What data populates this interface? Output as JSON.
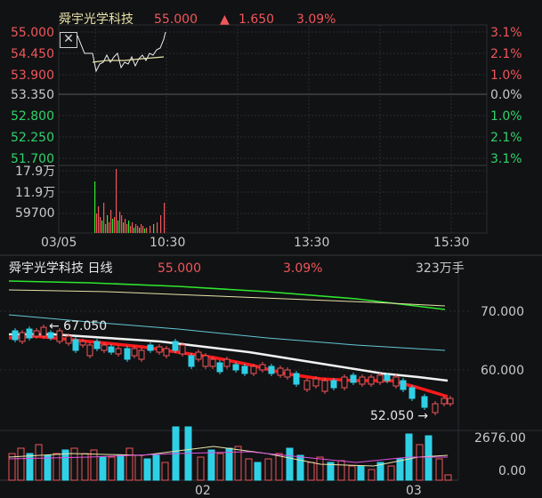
{
  "intraday": {
    "stock_name": "舜宇光学科技",
    "price": "55.000",
    "change_arrow": "▲",
    "change": "1.650",
    "change_pct": "3.09%",
    "left_axis": [
      "55.000",
      "54.450",
      "53.900",
      "53.350",
      "52.800",
      "52.250",
      "51.700"
    ],
    "right_axis": [
      "3.1%",
      "2.1%",
      "1.0%",
      "0.0%",
      "1.0%",
      "2.1%",
      "3.1%"
    ],
    "volume_axis": [
      "17.9万",
      "11.9万",
      "59700"
    ],
    "time_axis": [
      "03/05",
      "10:30",
      "13:30",
      "15:30"
    ],
    "close_glyph": "✕"
  },
  "daily": {
    "title": "舜宇光学科技 日线",
    "price": "55.000",
    "change_pct": "3.09%",
    "volume_label": "323万手",
    "right_axis": [
      "70.000",
      "60.000"
    ],
    "high_annotation": "← 67.050",
    "low_annotation": "52.050 →",
    "volume_axis": [
      "2676.00",
      "0.00"
    ],
    "date_axis": [
      "02",
      "03"
    ]
  },
  "colors": {
    "up": "#f0565a",
    "down": "#2fd0e6",
    "ma_white": "#f2f2f2",
    "ma_red": "#ff1a1a",
    "ma_green": "#2ee62e",
    "ma_yellow": "#e8e2a8",
    "ma_cyan": "#63c8d8"
  }
}
